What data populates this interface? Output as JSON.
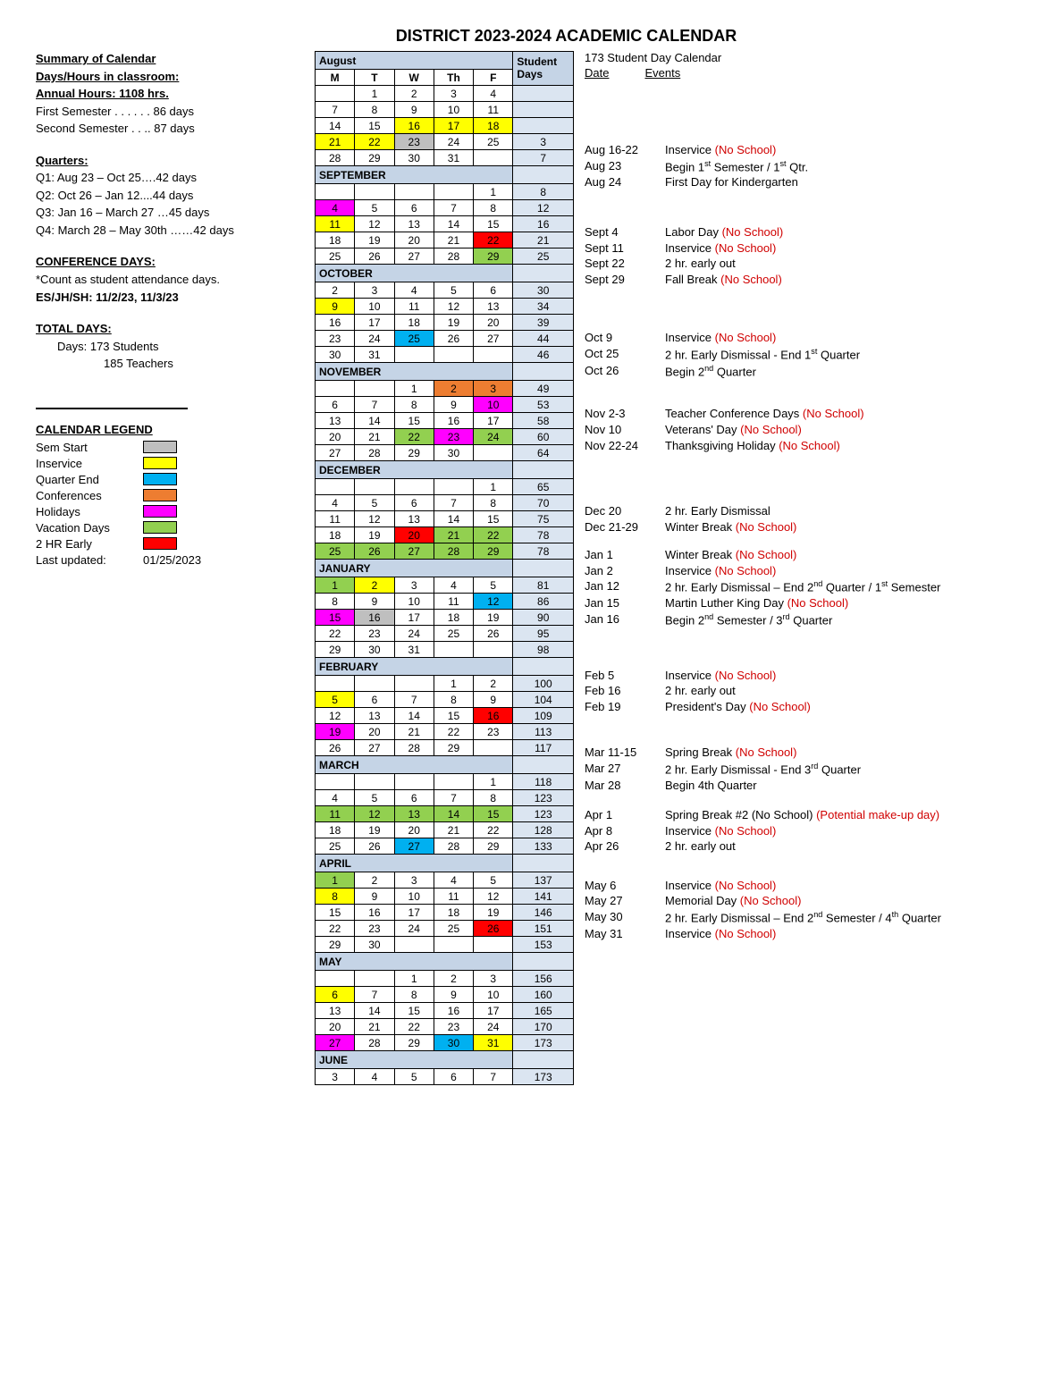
{
  "title": "DISTRICT 2023-2024 ACADEMIC CALENDAR",
  "colors": {
    "sem_start": "#bfbfbf",
    "inservice": "#ffff00",
    "quarter_end": "#00b0f0",
    "conferences": "#ed7d31",
    "holidays": "#ff00ff",
    "vacation": "#92d050",
    "early": "#ff0000",
    "header_bg": "#c5d4e6",
    "sd_bg": "#dbe5f1"
  },
  "summary": {
    "h1": "Summary of Calendar",
    "h2": "Days/Hours in classroom:",
    "h3": "Annual Hours: 1108 hrs.",
    "l1": "First Semester  . . . . . . 86 days",
    "l2": "Second Semester . . .. 87 days"
  },
  "quarters": {
    "h": "Quarters:",
    "q1": "Q1: Aug 23 – Oct 25….42 days",
    "q2": "Q2: Oct 26 – Jan 12....44 days",
    "q3": "Q3: Jan 16 – March 27 …45 days",
    "q4": "Q4: March 28 – May 30th ……42 days"
  },
  "conf": {
    "h": "CONFERENCE DAYS:",
    "l1": "*Count as student attendance days.",
    "l2": "ES/JH/SH: 11/2/23, 11/3/23"
  },
  "totals": {
    "h": "TOTAL DAYS:",
    "l1": "Days:   173 Students",
    "l2": "185 Teachers"
  },
  "legend": {
    "title": "CALENDAR LEGEND",
    "items": [
      {
        "label": "Sem Start",
        "colorKey": "sem_start"
      },
      {
        "label": "Inservice",
        "colorKey": "inservice"
      },
      {
        "label": "Quarter End",
        "colorKey": "quarter_end"
      },
      {
        "label": "Conferences",
        "colorKey": "conferences"
      },
      {
        "label": "Holidays",
        "colorKey": "holidays"
      },
      {
        "label": "Vacation Days",
        "colorKey": "vacation"
      },
      {
        "label": "2 HR Early",
        "colorKey": "early"
      }
    ],
    "updated_lbl": "Last updated:",
    "updated_val": "01/25/2023"
  },
  "dow": [
    "M",
    "T",
    "W",
    "Th",
    "F"
  ],
  "sd_header_l1": "Student",
  "sd_header_l2": "Days",
  "months": [
    {
      "name": "August",
      "rows": [
        {
          "cells": [
            null,
            "1",
            "2",
            "3",
            "4"
          ],
          "sd": null
        },
        {
          "cells": [
            "7",
            "8",
            "9",
            "10",
            "11"
          ],
          "sd": null
        },
        {
          "cells": [
            "14",
            "15",
            {
              "v": "16",
              "c": "inservice"
            },
            {
              "v": "17",
              "c": "inservice"
            },
            {
              "v": "18",
              "c": "inservice"
            }
          ],
          "sd": null
        },
        {
          "cells": [
            {
              "v": "21",
              "c": "inservice"
            },
            {
              "v": "22",
              "c": "inservice"
            },
            {
              "v": "23",
              "c": "sem_start"
            },
            "24",
            "25"
          ],
          "sd": "3"
        },
        {
          "cells": [
            "28",
            "29",
            "30",
            "31",
            null
          ],
          "sd": "7"
        }
      ]
    },
    {
      "name": "SEPTEMBER",
      "rows": [
        {
          "cells": [
            null,
            null,
            null,
            null,
            "1"
          ],
          "sd": "8"
        },
        {
          "cells": [
            {
              "v": "4",
              "c": "holidays"
            },
            "5",
            "6",
            "7",
            "8"
          ],
          "sd": "12"
        },
        {
          "cells": [
            {
              "v": "11",
              "c": "inservice"
            },
            "12",
            "13",
            "14",
            "15"
          ],
          "sd": "16"
        },
        {
          "cells": [
            "18",
            "19",
            "20",
            "21",
            {
              "v": "22",
              "c": "early"
            }
          ],
          "sd": "21"
        },
        {
          "cells": [
            "25",
            "26",
            "27",
            "28",
            {
              "v": "29",
              "c": "vacation"
            }
          ],
          "sd": "25"
        }
      ]
    },
    {
      "name": "OCTOBER",
      "rows": [
        {
          "cells": [
            "2",
            "3",
            "4",
            "5",
            "6"
          ],
          "sd": "30"
        },
        {
          "cells": [
            {
              "v": "9",
              "c": "inservice"
            },
            "10",
            "11",
            "12",
            "13"
          ],
          "sd": "34"
        },
        {
          "cells": [
            "16",
            "17",
            "18",
            "19",
            "20"
          ],
          "sd": "39"
        },
        {
          "cells": [
            "23",
            "24",
            {
              "v": "25",
              "c": "quarter_end"
            },
            "26",
            "27"
          ],
          "sd": "44"
        },
        {
          "cells": [
            "30",
            "31",
            null,
            null,
            null
          ],
          "sd": "46"
        }
      ]
    },
    {
      "name": "NOVEMBER",
      "rows": [
        {
          "cells": [
            null,
            null,
            "1",
            {
              "v": "2",
              "c": "conferences"
            },
            {
              "v": "3",
              "c": "conferences"
            }
          ],
          "sd": "49"
        },
        {
          "cells": [
            "6",
            "7",
            "8",
            "9",
            {
              "v": "10",
              "c": "holidays"
            }
          ],
          "sd": "53"
        },
        {
          "cells": [
            "13",
            "14",
            "15",
            "16",
            "17"
          ],
          "sd": "58"
        },
        {
          "cells": [
            "20",
            "21",
            {
              "v": "22",
              "c": "vacation"
            },
            {
              "v": "23",
              "c": "holidays"
            },
            {
              "v": "24",
              "c": "vacation"
            }
          ],
          "sd": "60"
        },
        {
          "cells": [
            "27",
            "28",
            "29",
            "30",
            null
          ],
          "sd": "64"
        }
      ]
    },
    {
      "name": "DECEMBER",
      "rows": [
        {
          "cells": [
            null,
            null,
            null,
            null,
            "1"
          ],
          "sd": "65"
        },
        {
          "cells": [
            "4",
            "5",
            "6",
            "7",
            "8"
          ],
          "sd": "70"
        },
        {
          "cells": [
            "11",
            "12",
            "13",
            "14",
            "15"
          ],
          "sd": "75"
        },
        {
          "cells": [
            "18",
            "19",
            {
              "v": "20",
              "c": "early"
            },
            {
              "v": "21",
              "c": "vacation"
            },
            {
              "v": "22",
              "c": "vacation"
            }
          ],
          "sd": "78"
        },
        {
          "cells": [
            {
              "v": "25",
              "c": "vacation"
            },
            {
              "v": "26",
              "c": "vacation"
            },
            {
              "v": "27",
              "c": "vacation"
            },
            {
              "v": "28",
              "c": "vacation"
            },
            {
              "v": "29",
              "c": "vacation"
            }
          ],
          "sd": "78"
        }
      ]
    },
    {
      "name": "JANUARY",
      "rows": [
        {
          "cells": [
            {
              "v": "1",
              "c": "vacation"
            },
            {
              "v": "2",
              "c": "inservice"
            },
            "3",
            "4",
            "5"
          ],
          "sd": "81"
        },
        {
          "cells": [
            "8",
            "9",
            "10",
            "11",
            {
              "v": "12",
              "c": "quarter_end"
            }
          ],
          "sd": "86"
        },
        {
          "cells": [
            {
              "v": "15",
              "c": "holidays"
            },
            {
              "v": "16",
              "c": "sem_start"
            },
            "17",
            "18",
            "19"
          ],
          "sd": "90"
        },
        {
          "cells": [
            "22",
            "23",
            "24",
            "25",
            "26"
          ],
          "sd": "95"
        },
        {
          "cells": [
            "29",
            "30",
            "31",
            null,
            null
          ],
          "sd": "98"
        }
      ]
    },
    {
      "name": "FEBRUARY",
      "rows": [
        {
          "cells": [
            null,
            null,
            null,
            "1",
            "2"
          ],
          "sd": "100"
        },
        {
          "cells": [
            {
              "v": "5",
              "c": "inservice"
            },
            "6",
            "7",
            "8",
            "9"
          ],
          "sd": "104"
        },
        {
          "cells": [
            "12",
            "13",
            "14",
            "15",
            {
              "v": "16",
              "c": "early"
            }
          ],
          "sd": "109"
        },
        {
          "cells": [
            {
              "v": "19",
              "c": "holidays"
            },
            "20",
            "21",
            "22",
            "23"
          ],
          "sd": "113"
        },
        {
          "cells": [
            "26",
            "27",
            "28",
            "29",
            null
          ],
          "sd": "117"
        }
      ]
    },
    {
      "name": "MARCH",
      "rows": [
        {
          "cells": [
            null,
            null,
            null,
            null,
            "1"
          ],
          "sd": "118"
        },
        {
          "cells": [
            "4",
            "5",
            "6",
            "7",
            "8"
          ],
          "sd": "123"
        },
        {
          "cells": [
            {
              "v": "11",
              "c": "vacation"
            },
            {
              "v": "12",
              "c": "vacation"
            },
            {
              "v": "13",
              "c": "vacation"
            },
            {
              "v": "14",
              "c": "vacation"
            },
            {
              "v": "15",
              "c": "vacation"
            }
          ],
          "sd": "123"
        },
        {
          "cells": [
            "18",
            "19",
            "20",
            "21",
            "22"
          ],
          "sd": "128"
        },
        {
          "cells": [
            "25",
            "26",
            {
              "v": "27",
              "c": "quarter_end"
            },
            "28",
            "29"
          ],
          "sd": "133"
        }
      ]
    },
    {
      "name": "APRIL",
      "rows": [
        {
          "cells": [
            {
              "v": "1",
              "c": "vacation"
            },
            "2",
            "3",
            "4",
            "5"
          ],
          "sd": "137"
        },
        {
          "cells": [
            {
              "v": "8",
              "c": "inservice"
            },
            "9",
            "10",
            "11",
            "12"
          ],
          "sd": "141"
        },
        {
          "cells": [
            "15",
            "16",
            "17",
            "18",
            "19"
          ],
          "sd": "146"
        },
        {
          "cells": [
            "22",
            "23",
            "24",
            "25",
            {
              "v": "26",
              "c": "early"
            }
          ],
          "sd": "151"
        },
        {
          "cells": [
            "29",
            "30",
            null,
            null,
            null
          ],
          "sd": "153"
        }
      ]
    },
    {
      "name": "MAY",
      "rows": [
        {
          "cells": [
            null,
            null,
            "1",
            "2",
            "3"
          ],
          "sd": "156"
        },
        {
          "cells": [
            {
              "v": "6",
              "c": "inservice"
            },
            "7",
            "8",
            "9",
            "10"
          ],
          "sd": "160"
        },
        {
          "cells": [
            "13",
            "14",
            "15",
            "16",
            "17"
          ],
          "sd": "165"
        },
        {
          "cells": [
            "20",
            "21",
            "22",
            "23",
            "24"
          ],
          "sd": "170"
        },
        {
          "cells": [
            {
              "v": "27",
              "c": "holidays"
            },
            "28",
            "29",
            {
              "v": "30",
              "c": "quarter_end"
            },
            {
              "v": "31",
              "c": "inservice"
            }
          ],
          "sd": "173"
        }
      ]
    },
    {
      "name": "JUNE",
      "rows": [
        {
          "cells": [
            "3",
            "4",
            "5",
            "6",
            "7"
          ],
          "sd": "173"
        }
      ]
    }
  ],
  "events_title": "173 Student Day Calendar",
  "events_h_date": "Date",
  "events_h_events": "Events",
  "event_groups": [
    [
      {
        "d": "Aug 16-22",
        "t": "Inservice ",
        "r": "(No School)"
      },
      {
        "d": "Aug 23",
        "t": "Begin 1<sup>st</sup> Semester / 1<sup>st</sup> Qtr."
      },
      {
        "d": "Aug 24",
        "t": "First Day for Kindergarten"
      }
    ],
    [
      {
        "d": "Sept 4",
        "t": "Labor Day ",
        "r": "(No School)"
      },
      {
        "d": "Sept 11",
        "t": "Inservice ",
        "r": "(No School)"
      },
      {
        "d": "Sept 22",
        "t": "2 hr. early out"
      },
      {
        "d": "Sept 29",
        "t": "Fall Break ",
        "r": "(No School)"
      }
    ],
    [
      {
        "d": "Oct 9",
        "t": "Inservice ",
        "r": "(No School)"
      },
      {
        "d": "Oct 25",
        "t": "2 hr. Early Dismissal - End 1<sup>st</sup> Quarter"
      },
      {
        "d": "Oct 26",
        "t": "Begin 2<sup>nd</sup> Quarter"
      }
    ],
    [
      {
        "d": "Nov 2-3",
        "t": "Teacher Conference Days ",
        "r": "(No School)"
      },
      {
        "d": "Nov 10",
        "t": "Veterans' Day ",
        "r": "(No School)"
      },
      {
        "d": "Nov 22-24",
        "t": "Thanksgiving Holiday ",
        "r": "(No School)"
      }
    ],
    [
      {
        "d": "Dec 20",
        "t": "2 hr. Early Dismissal"
      },
      {
        "d": "Dec 21-29",
        "t": "Winter Break ",
        "r": "(No School)"
      }
    ],
    [
      {
        "d": "Jan 1",
        "t": "Winter Break ",
        "r": "(No School)"
      },
      {
        "d": "Jan 2",
        "t": "Inservice ",
        "r": "(No School)"
      },
      {
        "d": "Jan 12",
        "t": "2 hr. Early Dismissal – End 2<sup>nd</sup> Quarter / 1<sup>st</sup> Semester"
      },
      {
        "d": "Jan 15",
        "t": "Martin Luther King Day ",
        "r": "(No School)"
      },
      {
        "d": "Jan 16",
        "t": "Begin 2<sup>nd</sup> Semester / 3<sup>rd</sup> Quarter"
      }
    ],
    [
      {
        "d": "Feb 5",
        "t": "Inservice ",
        "r": "(No School)"
      },
      {
        "d": "Feb 16",
        "t": "2 hr. early out"
      },
      {
        "d": "Feb 19",
        "t": "President's Day ",
        "r": "(No School)"
      }
    ],
    [
      {
        "d": "Mar 11-15",
        "t": "Spring Break ",
        "r": "(No School)"
      },
      {
        "d": "Mar 27",
        "t": "2 hr. Early Dismissal - End 3<sup>rd</sup> Quarter"
      },
      {
        "d": "Mar 28",
        "t": "Begin 4th Quarter"
      }
    ],
    [
      {
        "d": "Apr 1",
        "t": "Spring Break #2 (No School) ",
        "r": "(Potential make-up day)"
      },
      {
        "d": "Apr 8",
        "t": "Inservice ",
        "r": "(No School)"
      },
      {
        "d": "Apr 26",
        "t": "2 hr. early out"
      }
    ],
    [
      {
        "d": "May 6",
        "t": "Inservice ",
        "r": "(No School)"
      },
      {
        "d": "May 27",
        "t": "Memorial Day ",
        "r": "(No School)"
      },
      {
        "d": "May 30",
        "t": "2 hr. Early Dismissal – End 2<sup>nd</sup> Semester / 4<sup>th</sup> Quarter"
      },
      {
        "d": "May 31",
        "t": "Inservice ",
        "r": "(No School)"
      }
    ]
  ],
  "event_group_tops": [
    70,
    38,
    48,
    30,
    56,
    14,
    44,
    34,
    16,
    26
  ]
}
